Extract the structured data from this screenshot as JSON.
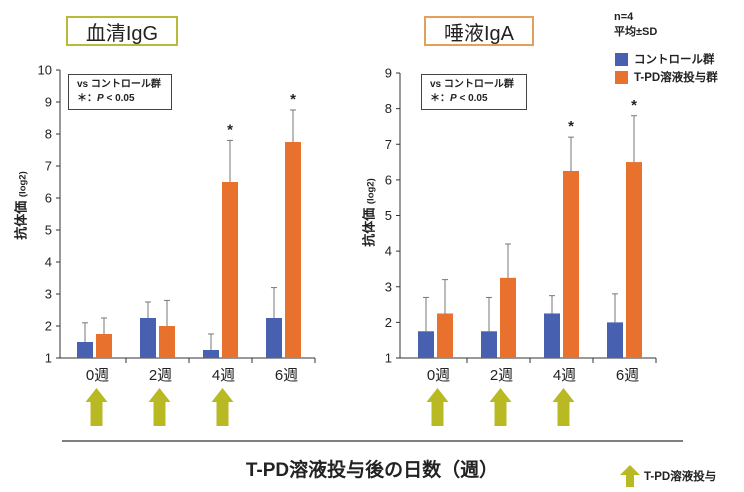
{
  "legend": {
    "n_text": "n=4",
    "mean_text": "平均±SD",
    "items": [
      {
        "label": "コントロール群",
        "color": "#4760b0"
      },
      {
        "label": "T-PD溶液投与群",
        "color": "#e8712e"
      }
    ]
  },
  "stat_note": {
    "line1": "vs コントロール群",
    "line2_prefix": "＊：",
    "line2_italic": "P",
    "line2_suffix": " < 0.05"
  },
  "x_axis_title": "T-PD溶液投与後の日数（週）",
  "arrow_legend_label": "T-PD溶液投与",
  "colors": {
    "control": "#4760b0",
    "treated": "#e8712e",
    "arrow": "#b9b924",
    "iga_title_border": "#e3a05a",
    "igg_title_border": "#b9b93a"
  },
  "chart_data": [
    {
      "type": "bar",
      "title": "血清IgG",
      "ylabel": "抗体価",
      "ylabel_unit": "(log2)",
      "ylim": [
        1,
        10
      ],
      "yticks": [
        1,
        2,
        3,
        4,
        5,
        6,
        7,
        8,
        9,
        10
      ],
      "categories": [
        "0週",
        "2週",
        "4週",
        "6週"
      ],
      "series": [
        {
          "name": "コントロール群",
          "values": [
            1.5,
            2.25,
            1.25,
            2.25
          ],
          "errors": [
            0.6,
            0.5,
            0.5,
            0.95
          ]
        },
        {
          "name": "T-PD溶液投与群",
          "values": [
            1.75,
            2.0,
            6.5,
            7.75
          ],
          "errors": [
            0.5,
            0.8,
            1.3,
            1.0
          ]
        }
      ],
      "significant": [
        false,
        false,
        true,
        true
      ],
      "dosing_weeks": [
        true,
        true,
        true,
        false
      ]
    },
    {
      "type": "bar",
      "title": "唾液IgA",
      "ylabel": "抗体価",
      "ylabel_unit": "(log2)",
      "ylim": [
        1,
        9
      ],
      "yticks": [
        1,
        2,
        3,
        4,
        5,
        6,
        7,
        8,
        9
      ],
      "categories": [
        "0週",
        "2週",
        "4週",
        "6週"
      ],
      "series": [
        {
          "name": "コントロール群",
          "values": [
            1.75,
            1.75,
            2.25,
            2.0
          ],
          "errors": [
            0.95,
            0.95,
            0.5,
            0.8
          ]
        },
        {
          "name": "T-PD溶液投与群",
          "values": [
            2.25,
            3.25,
            6.25,
            6.5
          ],
          "errors": [
            0.95,
            0.95,
            0.95,
            1.3
          ]
        }
      ],
      "significant": [
        false,
        false,
        true,
        true
      ],
      "dosing_weeks": [
        true,
        true,
        true,
        false
      ]
    }
  ]
}
